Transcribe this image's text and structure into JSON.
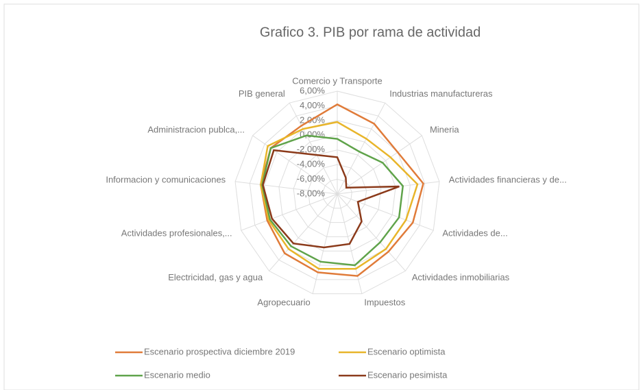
{
  "chart_data": {
    "type": "radar",
    "title": "Grafico 3. PIB por rama de actividad",
    "categories": [
      "Comercio y Transporte",
      "Industrias manufactureras",
      "Mineria",
      "Actividades financieras y de...",
      "Actividades de...",
      "Actividades inmobiliarias",
      "Impuestos",
      "Agropecuario",
      "Electricidad, gas y agua",
      "Actividades profesionales,...",
      "Informacion y comunicaciones",
      "Administracion publca,...",
      "PIB general"
    ],
    "series": [
      {
        "name": "Escenario prospectiva diciembre 2019",
        "color": "#e07b39",
        "values": [
          4.2,
          2.8,
          2.0,
          3.8,
          3.0,
          2.5,
          3.5,
          3.0,
          2.8,
          2.2,
          2.5,
          3.0,
          2.5
        ]
      },
      {
        "name": "Escenario optimista",
        "color": "#e8b52a",
        "values": [
          1.8,
          0.5,
          0.8,
          3.0,
          2.0,
          2.0,
          2.5,
          2.5,
          2.0,
          2.0,
          2.5,
          3.5,
          2.0
        ]
      },
      {
        "name": "Escenario medio",
        "color": "#5fa34a",
        "values": [
          -0.5,
          -1.5,
          -0.5,
          1.0,
          1.0,
          0.8,
          2.0,
          1.5,
          1.5,
          1.8,
          2.3,
          3.0,
          1.0
        ]
      },
      {
        "name": "Escenario pesimista",
        "color": "#8b3a1a",
        "values": [
          -3.0,
          -5.5,
          -6.5,
          0.5,
          -5.0,
          -3.0,
          -1.0,
          -0.5,
          1.0,
          1.5,
          2.2,
          2.5,
          -2.0
        ]
      }
    ],
    "ylim": [
      -8,
      6
    ],
    "yticks": [
      {
        "value": -8,
        "label": "-8,00%"
      },
      {
        "value": -6,
        "label": "-6,00%"
      },
      {
        "value": -4,
        "label": "-4,00%"
      },
      {
        "value": -2,
        "label": "-2,00%"
      },
      {
        "value": 0,
        "label": "0,00%"
      },
      {
        "value": 2,
        "label": "2,00%"
      },
      {
        "value": 4,
        "label": "4,00%"
      },
      {
        "value": 6,
        "label": "6,00%"
      }
    ],
    "grid": true
  }
}
